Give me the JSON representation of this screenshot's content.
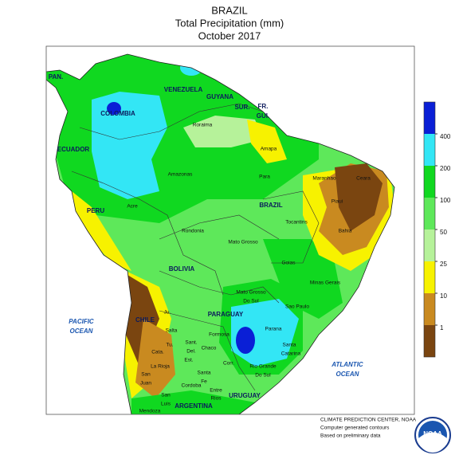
{
  "header": {
    "title": [
      "BRAZIL",
      "Total Precipitation (mm)",
      "October 2017"
    ]
  },
  "legend": {
    "ticks": [
      400,
      200,
      100,
      50,
      25,
      10,
      1
    ],
    "colors": [
      "#0a1fd6",
      "#33e6f5",
      "#10d820",
      "#5ee85a",
      "#b6f29a",
      "#f7f200",
      "#c98a20",
      "#7a4510"
    ]
  },
  "map_labels": [
    "PAN.",
    "VENEZUELA",
    "GUYANA",
    "SUR.",
    "FR.",
    "GUI.",
    "COLOMBIA",
    "ECUADOR",
    "PERU",
    "BRAZIL",
    "BOLIVIA",
    "PARAGUAY",
    "CHILE",
    "ARGENTINA",
    "URUGUAY",
    "Roraima",
    "Amapa",
    "Amazonas",
    "Para",
    "Maranhao",
    "Ceara",
    "Piaui",
    "Acre",
    "Rondonia",
    "Tocantins",
    "Bahia",
    "Mato Grosso",
    "Goias",
    "Minas Gerais",
    "Mato Grosso",
    "Do Sul",
    "Sao Paulo",
    "Parana",
    "Santa",
    "Catarina",
    "Rio Grande",
    "Do Sul",
    "Ju.",
    "Salta",
    "Formosa",
    "Tu.",
    "Sant.",
    "Del.",
    "Est.",
    "Chaco",
    "Cata.",
    "Corr.",
    "La Rioja",
    "Santa",
    "Fe",
    "San",
    "Juan",
    "Entre",
    "Rios",
    "Cordoba",
    "San",
    "Luis",
    "Mendoza",
    "PACIFIC",
    "OCEAN",
    "ATLANTIC",
    "OCEAN"
  ],
  "footer": [
    "CLIMATE PREDICTION CENTER, NOAA",
    "Computer generated contours",
    "Based on preliminary data"
  ],
  "logo": "NOAA"
}
